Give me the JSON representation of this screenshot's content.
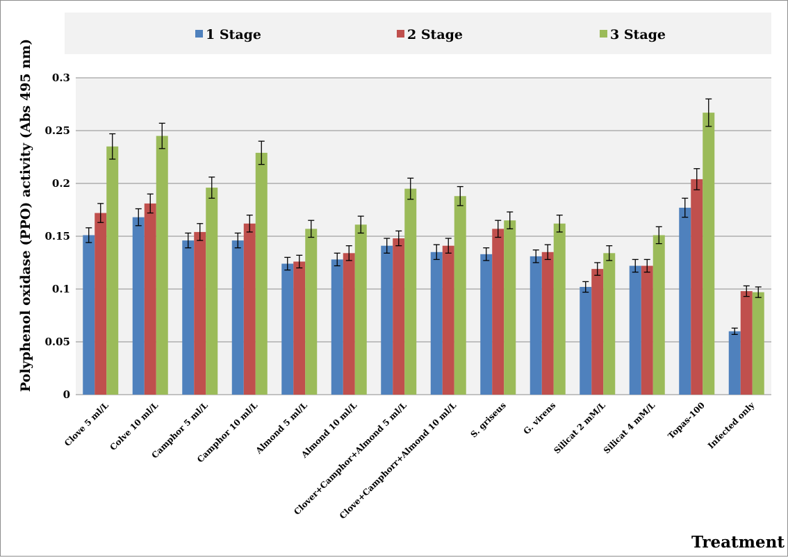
{
  "chart_data": {
    "type": "bar",
    "ylabel": "Polyphenol oxidase (PPO) activity (Abs 495 nm)",
    "xlabel": "Treatment",
    "ylim": [
      0,
      0.3
    ],
    "yticks": [
      "0",
      "0.05",
      "0.1",
      "0.15",
      "0.2",
      "0.25",
      "0.3"
    ],
    "yticks_values": [
      0,
      0.05,
      0.1,
      0.15,
      0.2,
      0.25,
      0.3
    ],
    "grid": true,
    "legend_position": "top",
    "categories": [
      "Clove 5 ml/L",
      "Colve 10 ml/L",
      "Camphor 5 ml/L",
      "Camphor 10 ml/L",
      "Almond 5 ml/L",
      "Almond 10 ml/L",
      "Clover+Camphor+Almond 5 ml/L",
      "Clove+Camphorr+Almond 10 ml/L",
      "S. griseus",
      "G. virens",
      "Silicat 2 mM/L",
      "Silicat 4 mM/L",
      "Topas-100",
      "Infected only"
    ],
    "series": [
      {
        "name": "1 Stage",
        "color": "#4f81bd",
        "values": [
          0.151,
          0.168,
          0.146,
          0.146,
          0.124,
          0.128,
          0.141,
          0.135,
          0.133,
          0.131,
          0.102,
          0.122,
          0.177,
          0.06
        ],
        "errors": [
          0.007,
          0.008,
          0.007,
          0.007,
          0.006,
          0.006,
          0.007,
          0.007,
          0.006,
          0.006,
          0.005,
          0.006,
          0.009,
          0.003
        ]
      },
      {
        "name": "2 Stage",
        "color": "#c0504d",
        "values": [
          0.172,
          0.181,
          0.154,
          0.162,
          0.126,
          0.134,
          0.148,
          0.141,
          0.157,
          0.135,
          0.119,
          0.122,
          0.204,
          0.098
        ],
        "errors": [
          0.009,
          0.009,
          0.008,
          0.008,
          0.006,
          0.007,
          0.007,
          0.007,
          0.008,
          0.007,
          0.006,
          0.006,
          0.01,
          0.005
        ]
      },
      {
        "name": "3 Stage",
        "color": "#9bbb59",
        "values": [
          0.235,
          0.245,
          0.196,
          0.229,
          0.157,
          0.161,
          0.195,
          0.188,
          0.165,
          0.162,
          0.134,
          0.151,
          0.267,
          0.097
        ],
        "errors": [
          0.012,
          0.012,
          0.01,
          0.011,
          0.008,
          0.008,
          0.01,
          0.009,
          0.008,
          0.008,
          0.007,
          0.008,
          0.013,
          0.005
        ]
      }
    ]
  }
}
